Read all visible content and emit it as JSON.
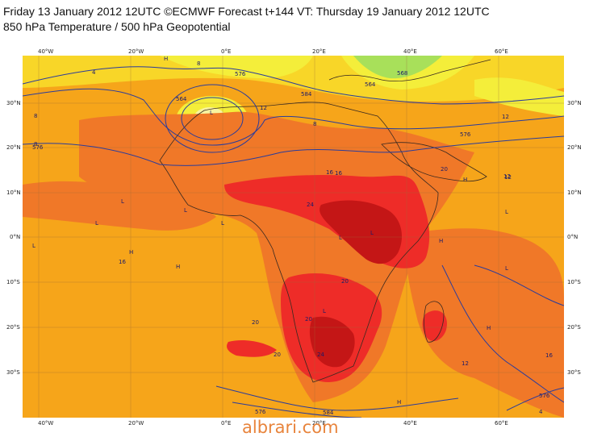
{
  "header": {
    "line1": "Friday 13 January 2012 12UTC ©ECMWF Forecast t+144 VT: Thursday 19 January 2012 12UTC",
    "line2": "850 hPa Temperature / 500 hPa Geopotential"
  },
  "map": {
    "lon_labels": [
      "40°W",
      "20°W",
      "0°E",
      "20°E",
      "40°E",
      "60°E"
    ],
    "lat_labels": [
      "30°N",
      "20°N",
      "10°N",
      "0°N",
      "10°S",
      "20°S",
      "30°S"
    ],
    "temperature_labels": [
      "4",
      "8",
      "8",
      "8",
      "8",
      "12",
      "12",
      "12",
      "16",
      "16",
      "16",
      "20",
      "20",
      "20",
      "20",
      "24",
      "24",
      "20",
      "12",
      "12",
      "16",
      "4"
    ],
    "geopotential_labels": [
      "576",
      "584",
      "564",
      "564",
      "576",
      "576",
      "568",
      "576",
      "576",
      "584"
    ],
    "pressure_markers": [
      "H",
      "H",
      "H",
      "H",
      "H",
      "H",
      "H",
      "L",
      "L",
      "L",
      "L",
      "L",
      "L",
      "L",
      "L",
      "L",
      "L",
      "L"
    ]
  },
  "colors": {
    "ocean_orange": "#f6a51a",
    "land_orange": "#f07828",
    "warm_red": "#ee2c28",
    "hot_darkred": "#c41616",
    "cool_yellow": "#f8d628",
    "light_yellow": "#f4ee3a",
    "green": "#a8e05a",
    "contour_blue": "#2a3c9c"
  },
  "watermark": "albrari.com"
}
